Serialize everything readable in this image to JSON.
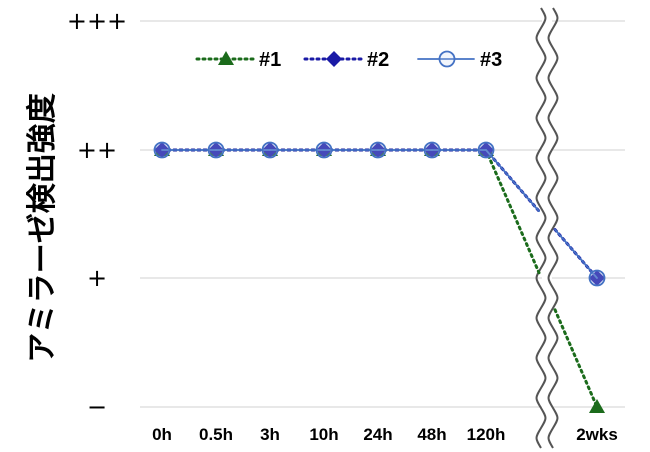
{
  "chart_data": {
    "type": "line",
    "ylabel": "アミラーゼ検出強度",
    "y_levels": [
      "−",
      "+",
      "++",
      "+++"
    ],
    "categories": [
      "0h",
      "0.5h",
      "3h",
      "10h",
      "24h",
      "48h",
      "120h",
      "2wks"
    ],
    "axis_break": "between 120h and 2wks",
    "legend_position": "top",
    "grid": true,
    "series": [
      {
        "name": "#1",
        "marker": "triangle",
        "line": "dotted",
        "color": "#1b6b1b",
        "values": [
          2,
          2,
          2,
          2,
          2,
          2,
          2,
          0
        ]
      },
      {
        "name": "#2",
        "marker": "diamond",
        "line": "dotted",
        "color": "#1a1aa6",
        "values": [
          2,
          2,
          2,
          2,
          2,
          2,
          2,
          1
        ]
      },
      {
        "name": "#3",
        "marker": "open-circle",
        "line": "solid",
        "color": "#4472c4",
        "values": [
          2,
          2,
          2,
          2,
          2,
          2,
          2,
          1
        ]
      }
    ]
  }
}
